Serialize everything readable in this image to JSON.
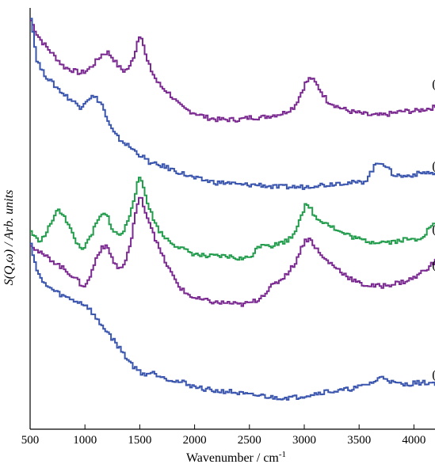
{
  "chart_data": {
    "type": "line",
    "title": "",
    "xlabel": "Wavenumber / cm",
    "xlabel_superscript": "-1",
    "ylabel": "S(Q,ω) / Arb. units",
    "xlim": [
      500,
      4200
    ],
    "ylim": [
      0,
      100
    ],
    "x_ticks": [
      500,
      1000,
      1500,
      2000,
      2500,
      3000,
      3500,
      4000
    ],
    "grid": false,
    "legend": "none",
    "series": [
      {
        "label": "(e)",
        "color": "#7b2a91",
        "label_x": 4180,
        "label_y": 82,
        "points": [
          [
            500,
            97
          ],
          [
            550,
            94
          ],
          [
            600,
            92
          ],
          [
            700,
            89
          ],
          [
            800,
            86
          ],
          [
            900,
            85
          ],
          [
            950,
            84.5
          ],
          [
            1000,
            85
          ],
          [
            1050,
            86
          ],
          [
            1100,
            87.5
          ],
          [
            1150,
            89
          ],
          [
            1200,
            89.5
          ],
          [
            1250,
            88
          ],
          [
            1300,
            86
          ],
          [
            1350,
            85
          ],
          [
            1400,
            86
          ],
          [
            1450,
            89.5
          ],
          [
            1480,
            93
          ],
          [
            1500,
            94
          ],
          [
            1520,
            92
          ],
          [
            1550,
            88
          ],
          [
            1600,
            85
          ],
          [
            1650,
            82.5
          ],
          [
            1700,
            81
          ],
          [
            1750,
            80
          ],
          [
            1800,
            78.5
          ],
          [
            1850,
            77
          ],
          [
            1900,
            76
          ],
          [
            2000,
            75
          ],
          [
            2100,
            74
          ],
          [
            2200,
            73.5
          ],
          [
            2300,
            73.5
          ],
          [
            2400,
            73.5
          ],
          [
            2500,
            74
          ],
          [
            2600,
            74
          ],
          [
            2700,
            74.5
          ],
          [
            2800,
            75
          ],
          [
            2900,
            76.5
          ],
          [
            2950,
            79
          ],
          [
            3000,
            82
          ],
          [
            3050,
            83.5
          ],
          [
            3100,
            82
          ],
          [
            3150,
            80
          ],
          [
            3200,
            78
          ],
          [
            3300,
            76.5
          ],
          [
            3400,
            75.5
          ],
          [
            3500,
            75
          ],
          [
            3600,
            74.5
          ],
          [
            3700,
            74.5
          ],
          [
            3800,
            75
          ],
          [
            3900,
            75.5
          ],
          [
            4000,
            75.5
          ],
          [
            4100,
            76
          ],
          [
            4200,
            76.5
          ]
        ]
      },
      {
        "label": "(d)",
        "color": "#3a55ae",
        "label_x": 4180,
        "label_y": 62.5,
        "points": [
          [
            500,
            98
          ],
          [
            550,
            88
          ],
          [
            600,
            85
          ],
          [
            700,
            82
          ],
          [
            800,
            79.5
          ],
          [
            900,
            77.5
          ],
          [
            950,
            76.5
          ],
          [
            1000,
            78
          ],
          [
            1050,
            79
          ],
          [
            1100,
            78.5
          ],
          [
            1150,
            77
          ],
          [
            1200,
            73
          ],
          [
            1250,
            70.5
          ],
          [
            1300,
            69
          ],
          [
            1400,
            67
          ],
          [
            1500,
            65
          ],
          [
            1550,
            64
          ],
          [
            1600,
            63
          ],
          [
            1700,
            62.5
          ],
          [
            1800,
            61.5
          ],
          [
            1900,
            60.5
          ],
          [
            2000,
            59.5
          ],
          [
            2100,
            59
          ],
          [
            2200,
            58.5
          ],
          [
            2300,
            58.5
          ],
          [
            2400,
            58
          ],
          [
            2500,
            58
          ],
          [
            2600,
            58
          ],
          [
            2700,
            57.5
          ],
          [
            2800,
            57.5
          ],
          [
            2900,
            57.5
          ],
          [
            3000,
            57.5
          ],
          [
            3100,
            58
          ],
          [
            3200,
            58
          ],
          [
            3300,
            58.5
          ],
          [
            3400,
            58.5
          ],
          [
            3500,
            58.5
          ],
          [
            3550,
            59
          ],
          [
            3600,
            61
          ],
          [
            3650,
            63
          ],
          [
            3700,
            63.5
          ],
          [
            3750,
            62
          ],
          [
            3800,
            60.5
          ],
          [
            3900,
            60
          ],
          [
            4000,
            60.5
          ],
          [
            4100,
            61
          ],
          [
            4200,
            60.5
          ]
        ]
      },
      {
        "label": "(c)",
        "color": "#239d4d",
        "label_x": 4180,
        "label_y": 47.5,
        "points": [
          [
            500,
            47
          ],
          [
            550,
            45
          ],
          [
            600,
            45
          ],
          [
            650,
            47
          ],
          [
            700,
            50
          ],
          [
            750,
            52
          ],
          [
            800,
            51
          ],
          [
            850,
            48
          ],
          [
            900,
            45
          ],
          [
            950,
            43
          ],
          [
            1000,
            43.5
          ],
          [
            1050,
            46
          ],
          [
            1100,
            49
          ],
          [
            1150,
            51
          ],
          [
            1200,
            50.5
          ],
          [
            1250,
            47
          ],
          [
            1300,
            46
          ],
          [
            1350,
            47
          ],
          [
            1400,
            51
          ],
          [
            1450,
            56
          ],
          [
            1480,
            59
          ],
          [
            1500,
            59.5
          ],
          [
            1520,
            58
          ],
          [
            1550,
            55
          ],
          [
            1600,
            51
          ],
          [
            1650,
            48
          ],
          [
            1700,
            46
          ],
          [
            1800,
            44
          ],
          [
            1900,
            42.5
          ],
          [
            2000,
            41.5
          ],
          [
            2100,
            41
          ],
          [
            2200,
            41
          ],
          [
            2300,
            41
          ],
          [
            2400,
            40.5
          ],
          [
            2450,
            40.5
          ],
          [
            2500,
            41
          ],
          [
            2550,
            42.5
          ],
          [
            2600,
            44
          ],
          [
            2650,
            44
          ],
          [
            2700,
            43.5
          ],
          [
            2750,
            44
          ],
          [
            2800,
            44.5
          ],
          [
            2850,
            45
          ],
          [
            2900,
            46.5
          ],
          [
            2950,
            50
          ],
          [
            3000,
            53
          ],
          [
            3050,
            52.5
          ],
          [
            3100,
            50
          ],
          [
            3150,
            49.5
          ],
          [
            3200,
            49
          ],
          [
            3300,
            47
          ],
          [
            3400,
            46
          ],
          [
            3500,
            45
          ],
          [
            3600,
            44.5
          ],
          [
            3700,
            44.5
          ],
          [
            3800,
            44.5
          ],
          [
            3900,
            45
          ],
          [
            4000,
            45
          ],
          [
            4050,
            45.5
          ],
          [
            4100,
            46.5
          ],
          [
            4150,
            48.5
          ],
          [
            4200,
            48.5
          ]
        ]
      },
      {
        "label": "(b)",
        "color": "#7b2a91",
        "label_x": 4180,
        "label_y": 39,
        "points": [
          [
            500,
            44
          ],
          [
            550,
            42.5
          ],
          [
            600,
            41.5
          ],
          [
            700,
            40
          ],
          [
            800,
            38
          ],
          [
            900,
            36
          ],
          [
            950,
            34.5
          ],
          [
            1000,
            34
          ],
          [
            1050,
            37
          ],
          [
            1100,
            41
          ],
          [
            1150,
            43.5
          ],
          [
            1200,
            43
          ],
          [
            1250,
            40
          ],
          [
            1300,
            38
          ],
          [
            1350,
            39
          ],
          [
            1400,
            43
          ],
          [
            1450,
            51
          ],
          [
            1480,
            54
          ],
          [
            1500,
            55
          ],
          [
            1520,
            54
          ],
          [
            1550,
            51
          ],
          [
            1600,
            48
          ],
          [
            1650,
            44
          ],
          [
            1700,
            41
          ],
          [
            1750,
            38.5
          ],
          [
            1800,
            36
          ],
          [
            1850,
            34
          ],
          [
            1900,
            32.5
          ],
          [
            2000,
            31
          ],
          [
            2100,
            30.5
          ],
          [
            2200,
            30
          ],
          [
            2300,
            30
          ],
          [
            2400,
            29.5
          ],
          [
            2500,
            30
          ],
          [
            2550,
            30.5
          ],
          [
            2600,
            31.5
          ],
          [
            2700,
            34
          ],
          [
            2800,
            36
          ],
          [
            2900,
            39
          ],
          [
            2950,
            42
          ],
          [
            3000,
            45
          ],
          [
            3050,
            45
          ],
          [
            3100,
            43
          ],
          [
            3150,
            41
          ],
          [
            3200,
            40
          ],
          [
            3300,
            38
          ],
          [
            3400,
            36
          ],
          [
            3500,
            34.5
          ],
          [
            3600,
            34
          ],
          [
            3700,
            34
          ],
          [
            3800,
            34.5
          ],
          [
            3900,
            35
          ],
          [
            4000,
            36
          ],
          [
            4050,
            37
          ],
          [
            4100,
            38
          ],
          [
            4150,
            39
          ],
          [
            4200,
            40
          ]
        ]
      },
      {
        "label": "(a)",
        "color": "#3a55ae",
        "label_x": 4180,
        "label_y": 13,
        "points": [
          [
            500,
            44
          ],
          [
            550,
            38
          ],
          [
            600,
            35
          ],
          [
            700,
            33
          ],
          [
            800,
            31.5
          ],
          [
            900,
            30.5
          ],
          [
            1000,
            29.5
          ],
          [
            1050,
            28
          ],
          [
            1100,
            26
          ],
          [
            1200,
            23
          ],
          [
            1300,
            19.5
          ],
          [
            1400,
            16
          ],
          [
            1450,
            14.5
          ],
          [
            1500,
            13.5
          ],
          [
            1550,
            13
          ],
          [
            1600,
            13.5
          ],
          [
            1650,
            13
          ],
          [
            1700,
            12.5
          ],
          [
            1800,
            11.5
          ],
          [
            1900,
            11
          ],
          [
            2000,
            10
          ],
          [
            2100,
            9.5
          ],
          [
            2200,
            9
          ],
          [
            2300,
            9
          ],
          [
            2400,
            8.5
          ],
          [
            2500,
            8
          ],
          [
            2600,
            8
          ],
          [
            2700,
            7.5
          ],
          [
            2800,
            7.5
          ],
          [
            2900,
            7.5
          ],
          [
            3000,
            8
          ],
          [
            3100,
            8.5
          ],
          [
            3200,
            9
          ],
          [
            3300,
            9
          ],
          [
            3400,
            9.5
          ],
          [
            3500,
            10
          ],
          [
            3600,
            11
          ],
          [
            3650,
            11.5
          ],
          [
            3700,
            12.5
          ],
          [
            3750,
            12
          ],
          [
            3800,
            11
          ],
          [
            3900,
            10.5
          ],
          [
            4000,
            11
          ],
          [
            4100,
            11
          ],
          [
            4200,
            11
          ]
        ]
      }
    ]
  }
}
